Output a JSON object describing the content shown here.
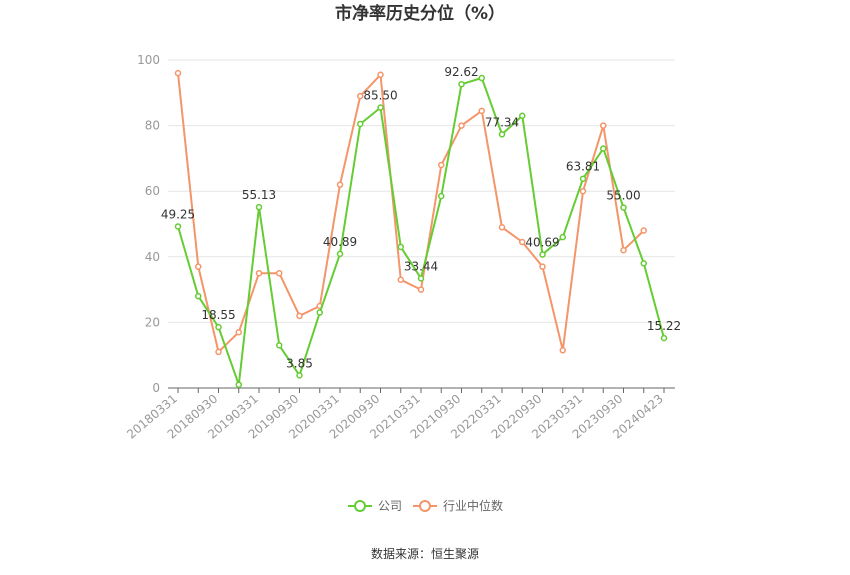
{
  "chart_data": {
    "type": "line",
    "title": "市净率历史分位（%）",
    "source": "数据来源：恒生聚源",
    "ylim": [
      0,
      100
    ],
    "yticks": [
      0,
      20,
      40,
      60,
      80,
      100
    ],
    "grid": true,
    "legend_position": "bottom",
    "x": [
      "20180331",
      "20180630",
      "20180930",
      "20181231",
      "20190331",
      "20190630",
      "20190930",
      "20191231",
      "20200331",
      "20200630",
      "20200930",
      "20201231",
      "20210331",
      "20210630",
      "20210930",
      "20211231",
      "20220331",
      "20220630",
      "20220930",
      "20221231",
      "20230331",
      "20230630",
      "20230930",
      "20231231",
      "20240423"
    ],
    "x_tick_labels": [
      "20180331",
      "20180930",
      "20190331",
      "20190930",
      "20200331",
      "20200930",
      "20210331",
      "20210930",
      "20220331",
      "20220930",
      "20230331",
      "20230930",
      "20240423"
    ],
    "series": [
      {
        "name": "公司",
        "color": "#66cc33",
        "values": [
          49.25,
          28,
          18.55,
          1,
          55.13,
          13,
          3.85,
          23,
          40.89,
          80.5,
          85.5,
          43,
          33.44,
          58.5,
          92.62,
          94.5,
          77.34,
          83,
          40.69,
          46,
          63.81,
          73,
          55.0,
          38,
          15.22
        ],
        "labels": {
          "0": "49.25",
          "2": "18.55",
          "4": "55.13",
          "6": "3.85",
          "8": "40.89",
          "10": "85.50",
          "12": "33.44",
          "14": "92.62",
          "16": "77.34",
          "18": "40.69",
          "20": "63.81",
          "22": "55.00",
          "24": "15.22"
        }
      },
      {
        "name": "行业中位数",
        "color": "#f4956a",
        "values": [
          96,
          37,
          11,
          17,
          35,
          35,
          22,
          25,
          62,
          89,
          95.5,
          33,
          30,
          68,
          80,
          84.5,
          49,
          44.5,
          37,
          11.5,
          60,
          80,
          42,
          48,
          null
        ]
      }
    ]
  }
}
